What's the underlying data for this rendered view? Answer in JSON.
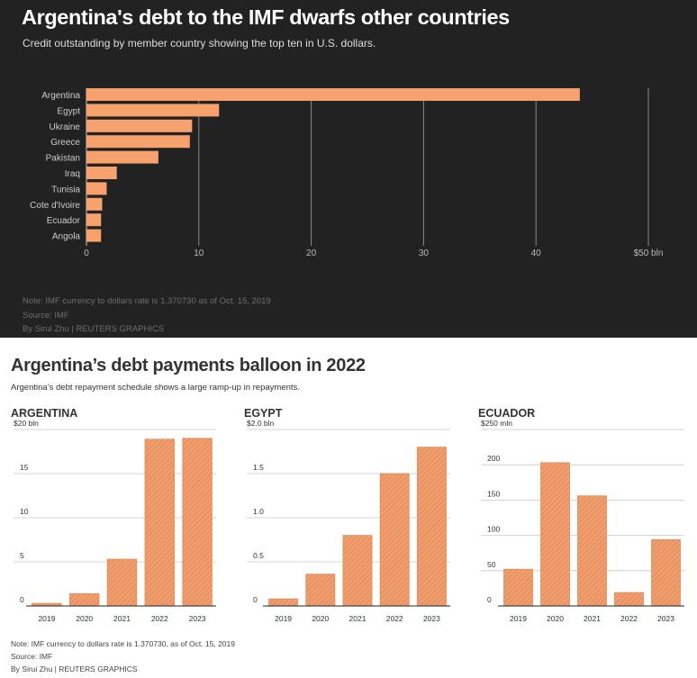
{
  "top": {
    "title": "Argentina's debt to the IMF dwarfs other countries",
    "subtitle": "Credit outstanding by member country showing the top ten in U.S. dollars.",
    "note": "Note: IMF currency to dollars rate is 1.370730 as of Oct. 15, 2019",
    "source": "Source: IMF",
    "byline": "By Sirui Zhu   | REUTERS GRAPHICS"
  },
  "bottom": {
    "title": "Argentina’s debt payments balloon in 2022",
    "subtitle": "Argentina’s debt repayment schedule shows a large ramp-up in repayments.",
    "note": "Note: IMF currency to dollars rate is 1.370730, as of Oct. 15, 2019",
    "source": "Source: IMF",
    "byline": "By Sirui Zhu | REUTERS GRAPHICS"
  },
  "colors": {
    "bar": "#f7a16e",
    "grid_dark": "#8a8a8a",
    "bottom_bar": "#f19e6e"
  },
  "chart_data": [
    {
      "type": "bar",
      "orientation": "horizontal",
      "title": "Argentina's debt to the IMF dwarfs other countries",
      "categories": [
        "Argentina",
        "Egypt",
        "Ukraine",
        "Greece",
        "Pakistan",
        "Iraq",
        "Tunisia",
        "Cote d'Ivoire",
        "Ecuador",
        "Angola"
      ],
      "values": [
        43.9,
        11.8,
        9.4,
        9.2,
        6.4,
        2.7,
        1.8,
        1.4,
        1.3,
        1.3
      ],
      "xticks": [
        0,
        10,
        20,
        30,
        40,
        50
      ],
      "xtick_labels": [
        "0",
        "10",
        "20",
        "30",
        "40",
        "$50 bln"
      ],
      "xlim": [
        0,
        50
      ]
    },
    {
      "type": "bar",
      "title": "ARGENTINA",
      "categories": [
        "2019",
        "2020",
        "2021",
        "2022",
        "2023"
      ],
      "values": [
        0.3,
        1.4,
        5.3,
        18.9,
        19.0
      ],
      "yticks": [
        0,
        5,
        10,
        15,
        20
      ],
      "ytick_labels": [
        "0",
        "5",
        "10",
        "15",
        "$20 bln"
      ],
      "ylim": [
        0,
        20
      ]
    },
    {
      "type": "bar",
      "title": "EGYPT",
      "categories": [
        "2019",
        "2020",
        "2021",
        "2022",
        "2023"
      ],
      "values": [
        0.08,
        0.36,
        0.8,
        1.5,
        1.8
      ],
      "yticks": [
        0,
        0.5,
        1.0,
        1.5,
        2.0
      ],
      "ytick_labels": [
        "0",
        "0.5",
        "1.0",
        "1.5",
        "$2.0 bln"
      ],
      "ylim": [
        0,
        2.0
      ]
    },
    {
      "type": "bar",
      "title": "ECUADOR",
      "categories": [
        "2019",
        "2020",
        "2021",
        "2022",
        "2023"
      ],
      "values": [
        52,
        203,
        156,
        19,
        94
      ],
      "yticks": [
        0,
        50,
        100,
        150,
        200,
        250
      ],
      "ytick_labels": [
        "0",
        "50",
        "100",
        "150",
        "200",
        "$250 mln"
      ],
      "ylim": [
        0,
        250
      ]
    }
  ]
}
